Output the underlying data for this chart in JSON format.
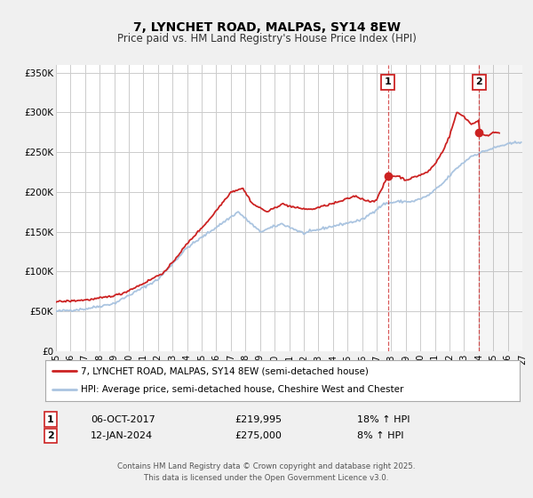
{
  "title": "7, LYNCHET ROAD, MALPAS, SY14 8EW",
  "subtitle": "Price paid vs. HM Land Registry's House Price Index (HPI)",
  "ylim": [
    0,
    360000
  ],
  "xlim_start": 1995.0,
  "xlim_end": 2027.0,
  "yticks": [
    0,
    50000,
    100000,
    150000,
    200000,
    250000,
    300000,
    350000
  ],
  "ytick_labels": [
    "£0",
    "£50K",
    "£100K",
    "£150K",
    "£200K",
    "£250K",
    "£300K",
    "£350K"
  ],
  "xticks": [
    1995,
    1996,
    1997,
    1998,
    1999,
    2000,
    2001,
    2002,
    2003,
    2004,
    2005,
    2006,
    2007,
    2008,
    2009,
    2010,
    2011,
    2012,
    2013,
    2014,
    2015,
    2016,
    2017,
    2018,
    2019,
    2020,
    2021,
    2022,
    2023,
    2024,
    2025,
    2026,
    2027
  ],
  "background_color": "#f0f0f0",
  "plot_bg_color": "#ffffff",
  "grid_color": "#cccccc",
  "hpi_color": "#aac4e0",
  "price_color": "#cc2222",
  "sale1_date": 2017.77,
  "sale1_price": 219995,
  "sale1_label": "1",
  "sale2_date": 2024.04,
  "sale2_price": 275000,
  "sale2_label": "2",
  "vline_color": "#cc2222",
  "shade_start": 2024.04,
  "shade_end": 2027.0,
  "legend_line1": "7, LYNCHET ROAD, MALPAS, SY14 8EW (semi-detached house)",
  "legend_line2": "HPI: Average price, semi-detached house, Cheshire West and Chester",
  "annotation1_date": "06-OCT-2017",
  "annotation1_price": "£219,995",
  "annotation1_hpi": "18% ↑ HPI",
  "annotation2_date": "12-JAN-2024",
  "annotation2_price": "£275,000",
  "annotation2_hpi": "8% ↑ HPI",
  "footer": "Contains HM Land Registry data © Crown copyright and database right 2025.\nThis data is licensed under the Open Government Licence v3.0.",
  "title_fontsize": 10,
  "subtitle_fontsize": 8.5
}
